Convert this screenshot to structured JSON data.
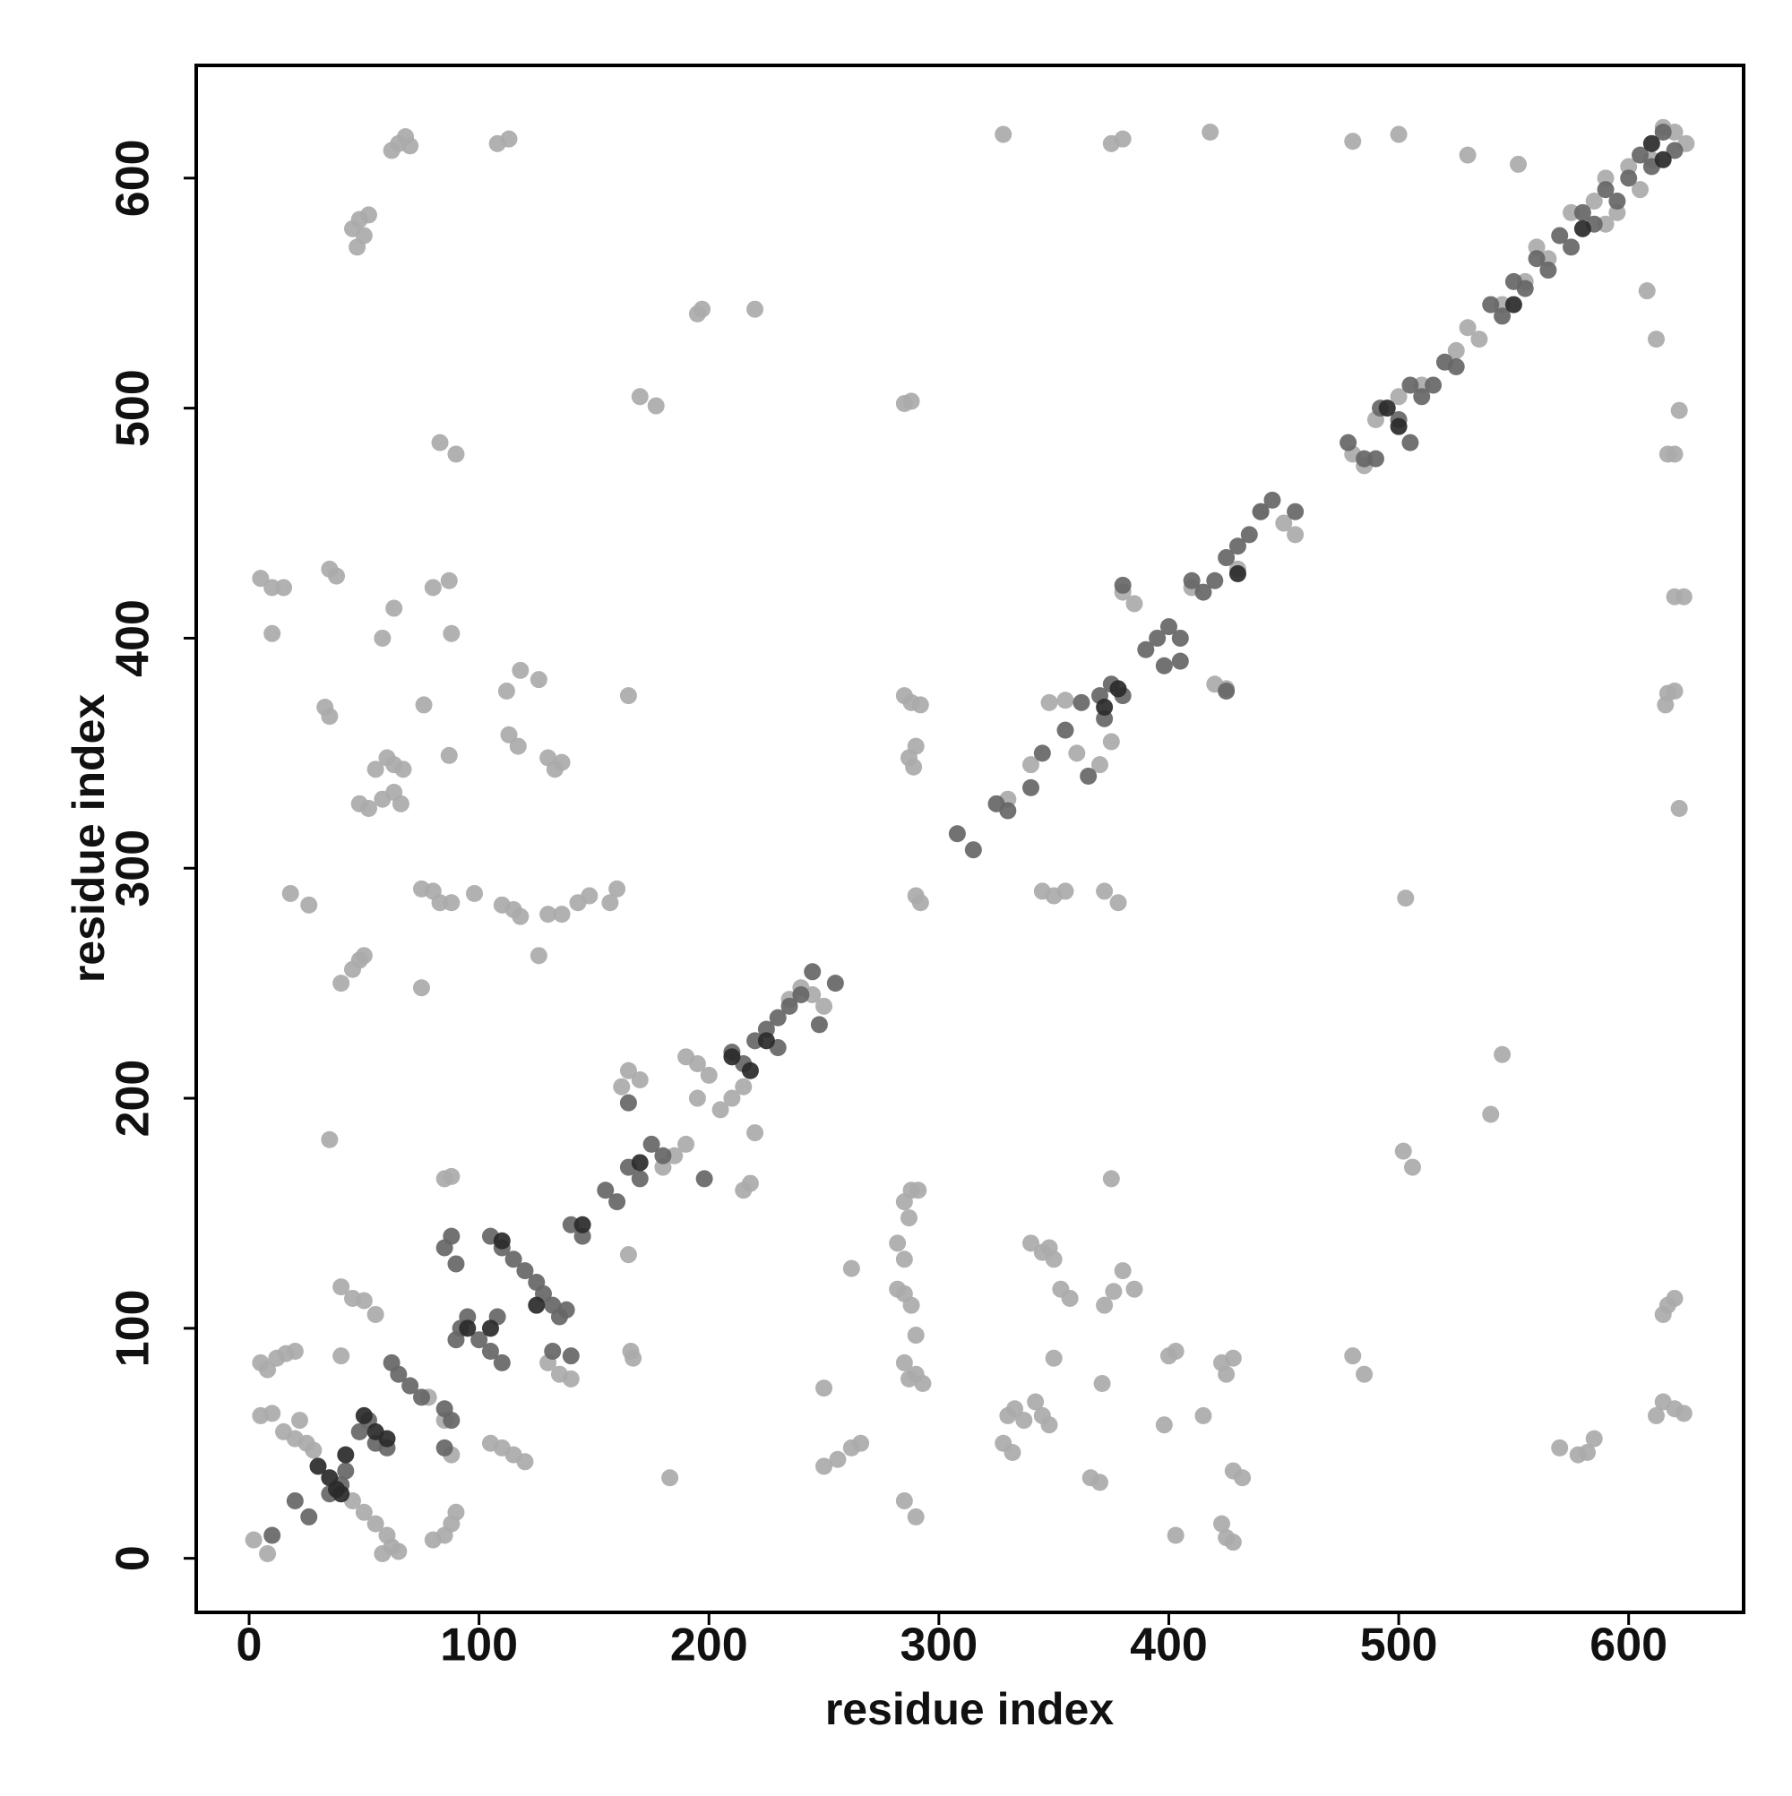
{
  "chart_data": {
    "type": "scatter",
    "xlabel": "residue index",
    "ylabel": "residue index",
    "xlim": [
      -23,
      650
    ],
    "ylim": [
      -23.5,
      649
    ],
    "xticks": [
      0,
      100,
      200,
      300,
      400,
      500,
      600
    ],
    "yticks": [
      0,
      100,
      200,
      300,
      400,
      500,
      600
    ],
    "series": [
      {
        "color": "#aaaaaa",
        "x": [
          65,
          68,
          62,
          70,
          108,
          113,
          45,
          48,
          50,
          52,
          47,
          195,
          197,
          220,
          170,
          177,
          83,
          90,
          5,
          10,
          15,
          35,
          38,
          80,
          87,
          10,
          58,
          63,
          88,
          112,
          118,
          126,
          165,
          33,
          35,
          76,
          113,
          117,
          130,
          133,
          136,
          60,
          63,
          67,
          55,
          48,
          52,
          58,
          63,
          66,
          87,
          18,
          26,
          75,
          80,
          83,
          88,
          98,
          110,
          115,
          118,
          130,
          136,
          143,
          148,
          157,
          160,
          40,
          45,
          48,
          50,
          126,
          75,
          35,
          328,
          375,
          380,
          418,
          480,
          500,
          530,
          552,
          288,
          285,
          285,
          288,
          292,
          290,
          287,
          289,
          345,
          350,
          355,
          372,
          378,
          290,
          292,
          410,
          540,
          545,
          502,
          506,
          503,
          617,
          620,
          622,
          612,
          608,
          620,
          624,
          617,
          620,
          616,
          622,
          617,
          620,
          615,
          612,
          615,
          620,
          624,
          570,
          578,
          582,
          585,
          480,
          485,
          400,
          403,
          398,
          415,
          403,
          423,
          425,
          428,
          423,
          425,
          428,
          428,
          432,
          375,
          380,
          385,
          376,
          372,
          340,
          345,
          348,
          350,
          353,
          357,
          350,
          330,
          333,
          337,
          328,
          332,
          342,
          345,
          348,
          366,
          370,
          371,
          288,
          291,
          285,
          287,
          282,
          285,
          282,
          285,
          288,
          290,
          285,
          287,
          290,
          293,
          285,
          290,
          262,
          250,
          250,
          256,
          262,
          266,
          183,
          165,
          166,
          167,
          5,
          8,
          12,
          16,
          20,
          5,
          10,
          15,
          20,
          25,
          28,
          22,
          2,
          8,
          40,
          45,
          50,
          55,
          40,
          45,
          50,
          55,
          60,
          62,
          65,
          58,
          80,
          85,
          88,
          90,
          88,
          85,
          78,
          105,
          110,
          115,
          120,
          130,
          135,
          140,
          85,
          88,
          180,
          185,
          190,
          195,
          200,
          205,
          210,
          215,
          190,
          195,
          215,
          218,
          220,
          162,
          165,
          170,
          240,
          245,
          235,
          250,
          330,
          340,
          348,
          355,
          360,
          370,
          375,
          380,
          385,
          420,
          425,
          430,
          440,
          450,
          455,
          480,
          485,
          490,
          500,
          510,
          525,
          530,
          535,
          545,
          555,
          560,
          565,
          575,
          585,
          590,
          600,
          610,
          615,
          620,
          625,
          590,
          595,
          605
        ],
        "values": [
          615,
          618,
          612,
          614,
          615,
          617,
          578,
          582,
          575,
          584,
          570,
          541,
          543,
          543,
          505,
          501,
          485,
          480,
          426,
          422,
          422,
          430,
          427,
          422,
          425,
          402,
          400,
          413,
          402,
          377,
          386,
          382,
          375,
          370,
          366,
          371,
          358,
          353,
          348,
          343,
          346,
          348,
          345,
          343,
          343,
          328,
          326,
          330,
          333,
          328,
          349,
          289,
          284,
          291,
          290,
          285,
          285,
          289,
          284,
          282,
          279,
          280,
          280,
          285,
          288,
          285,
          291,
          250,
          256,
          260,
          262,
          262,
          248,
          182,
          619,
          615,
          617,
          620,
          616,
          619,
          610,
          606,
          503,
          502,
          375,
          372,
          371,
          353,
          348,
          344,
          290,
          288,
          290,
          290,
          285,
          288,
          285,
          422,
          193,
          219,
          177,
          170,
          287,
          480,
          480,
          499,
          530,
          551,
          418,
          418,
          376,
          377,
          371,
          326,
          110,
          113,
          106,
          62,
          68,
          65,
          63,
          48,
          45,
          46,
          52,
          88,
          80,
          88,
          90,
          58,
          62,
          10,
          85,
          80,
          87,
          15,
          9,
          7,
          38,
          35,
          165,
          125,
          117,
          116,
          110,
          137,
          133,
          135,
          130,
          117,
          113,
          87,
          62,
          65,
          60,
          50,
          46,
          68,
          62,
          58,
          35,
          33,
          76,
          160,
          160,
          155,
          148,
          137,
          130,
          117,
          115,
          110,
          97,
          85,
          78,
          80,
          76,
          25,
          18,
          126,
          74,
          40,
          43,
          48,
          50,
          35,
          132,
          90,
          87,
          85,
          82,
          87,
          89,
          90,
          62,
          63,
          55,
          52,
          50,
          47,
          60,
          8,
          2,
          118,
          113,
          112,
          106,
          88,
          25,
          20,
          15,
          10,
          5,
          3,
          2,
          8,
          10,
          15,
          20,
          45,
          60,
          70,
          50,
          48,
          45,
          42,
          85,
          80,
          78,
          165,
          166,
          170,
          175,
          180,
          200,
          210,
          195,
          200,
          205,
          218,
          215,
          160,
          163,
          185,
          205,
          212,
          208,
          248,
          245,
          243,
          240,
          330,
          345,
          372,
          373,
          350,
          345,
          355,
          420,
          415,
          380,
          378,
          430,
          455,
          450,
          445,
          480,
          475,
          495,
          505,
          510,
          525,
          535,
          530,
          545,
          555,
          570,
          565,
          585,
          590,
          600,
          605,
          608,
          622,
          620,
          615,
          580,
          585,
          595
        ]
      },
      {
        "color": "#666666",
        "x": [
          10,
          20,
          26,
          35,
          40,
          42,
          48,
          52,
          55,
          60,
          62,
          65,
          70,
          75,
          85,
          88,
          85,
          90,
          92,
          95,
          100,
          105,
          110,
          108,
          105,
          110,
          115,
          120,
          125,
          128,
          132,
          135,
          138,
          140,
          132,
          88,
          85,
          90,
          140,
          145,
          155,
          160,
          165,
          170,
          175,
          180,
          165,
          198,
          210,
          215,
          220,
          225,
          230,
          235,
          240,
          245,
          255,
          248,
          230,
          308,
          315,
          325,
          330,
          340,
          345,
          355,
          362,
          370,
          375,
          380,
          372,
          365,
          390,
          395,
          400,
          405,
          398,
          410,
          415,
          420,
          425,
          430,
          435,
          440,
          445,
          455,
          405,
          380,
          425,
          478,
          485,
          492,
          500,
          505,
          510,
          515,
          520,
          525,
          540,
          545,
          550,
          555,
          560,
          565,
          570,
          575,
          580,
          585,
          590,
          595,
          600,
          605,
          610,
          615,
          620,
          490,
          505
        ],
        "values": [
          10,
          25,
          18,
          28,
          32,
          38,
          55,
          60,
          50,
          48,
          85,
          80,
          75,
          70,
          65,
          60,
          48,
          95,
          100,
          105,
          95,
          90,
          85,
          105,
          140,
          135,
          130,
          125,
          120,
          115,
          110,
          105,
          108,
          88,
          90,
          140,
          135,
          128,
          145,
          140,
          160,
          155,
          170,
          165,
          180,
          175,
          198,
          165,
          220,
          215,
          225,
          230,
          235,
          240,
          245,
          255,
          250,
          232,
          222,
          315,
          308,
          328,
          325,
          335,
          350,
          360,
          372,
          375,
          380,
          375,
          365,
          340,
          395,
          400,
          405,
          400,
          388,
          425,
          420,
          425,
          435,
          440,
          445,
          455,
          460,
          455,
          390,
          423,
          377,
          485,
          478,
          500,
          495,
          510,
          505,
          510,
          520,
          518,
          545,
          540,
          555,
          552,
          565,
          560,
          575,
          570,
          585,
          580,
          595,
          590,
          600,
          610,
          605,
          620,
          612,
          478,
          485
        ]
      },
      {
        "color": "#2a2a2a",
        "x": [
          30,
          38,
          42,
          35,
          40,
          55,
          50,
          60,
          95,
          105,
          110,
          125,
          145,
          170,
          210,
          218,
          225,
          372,
          378,
          430,
          495,
          500,
          550,
          580,
          610,
          615
        ],
        "values": [
          40,
          30,
          45,
          35,
          28,
          55,
          62,
          52,
          100,
          100,
          138,
          110,
          145,
          172,
          218,
          212,
          225,
          370,
          378,
          428,
          500,
          492,
          545,
          578,
          615,
          608
        ]
      }
    ]
  }
}
